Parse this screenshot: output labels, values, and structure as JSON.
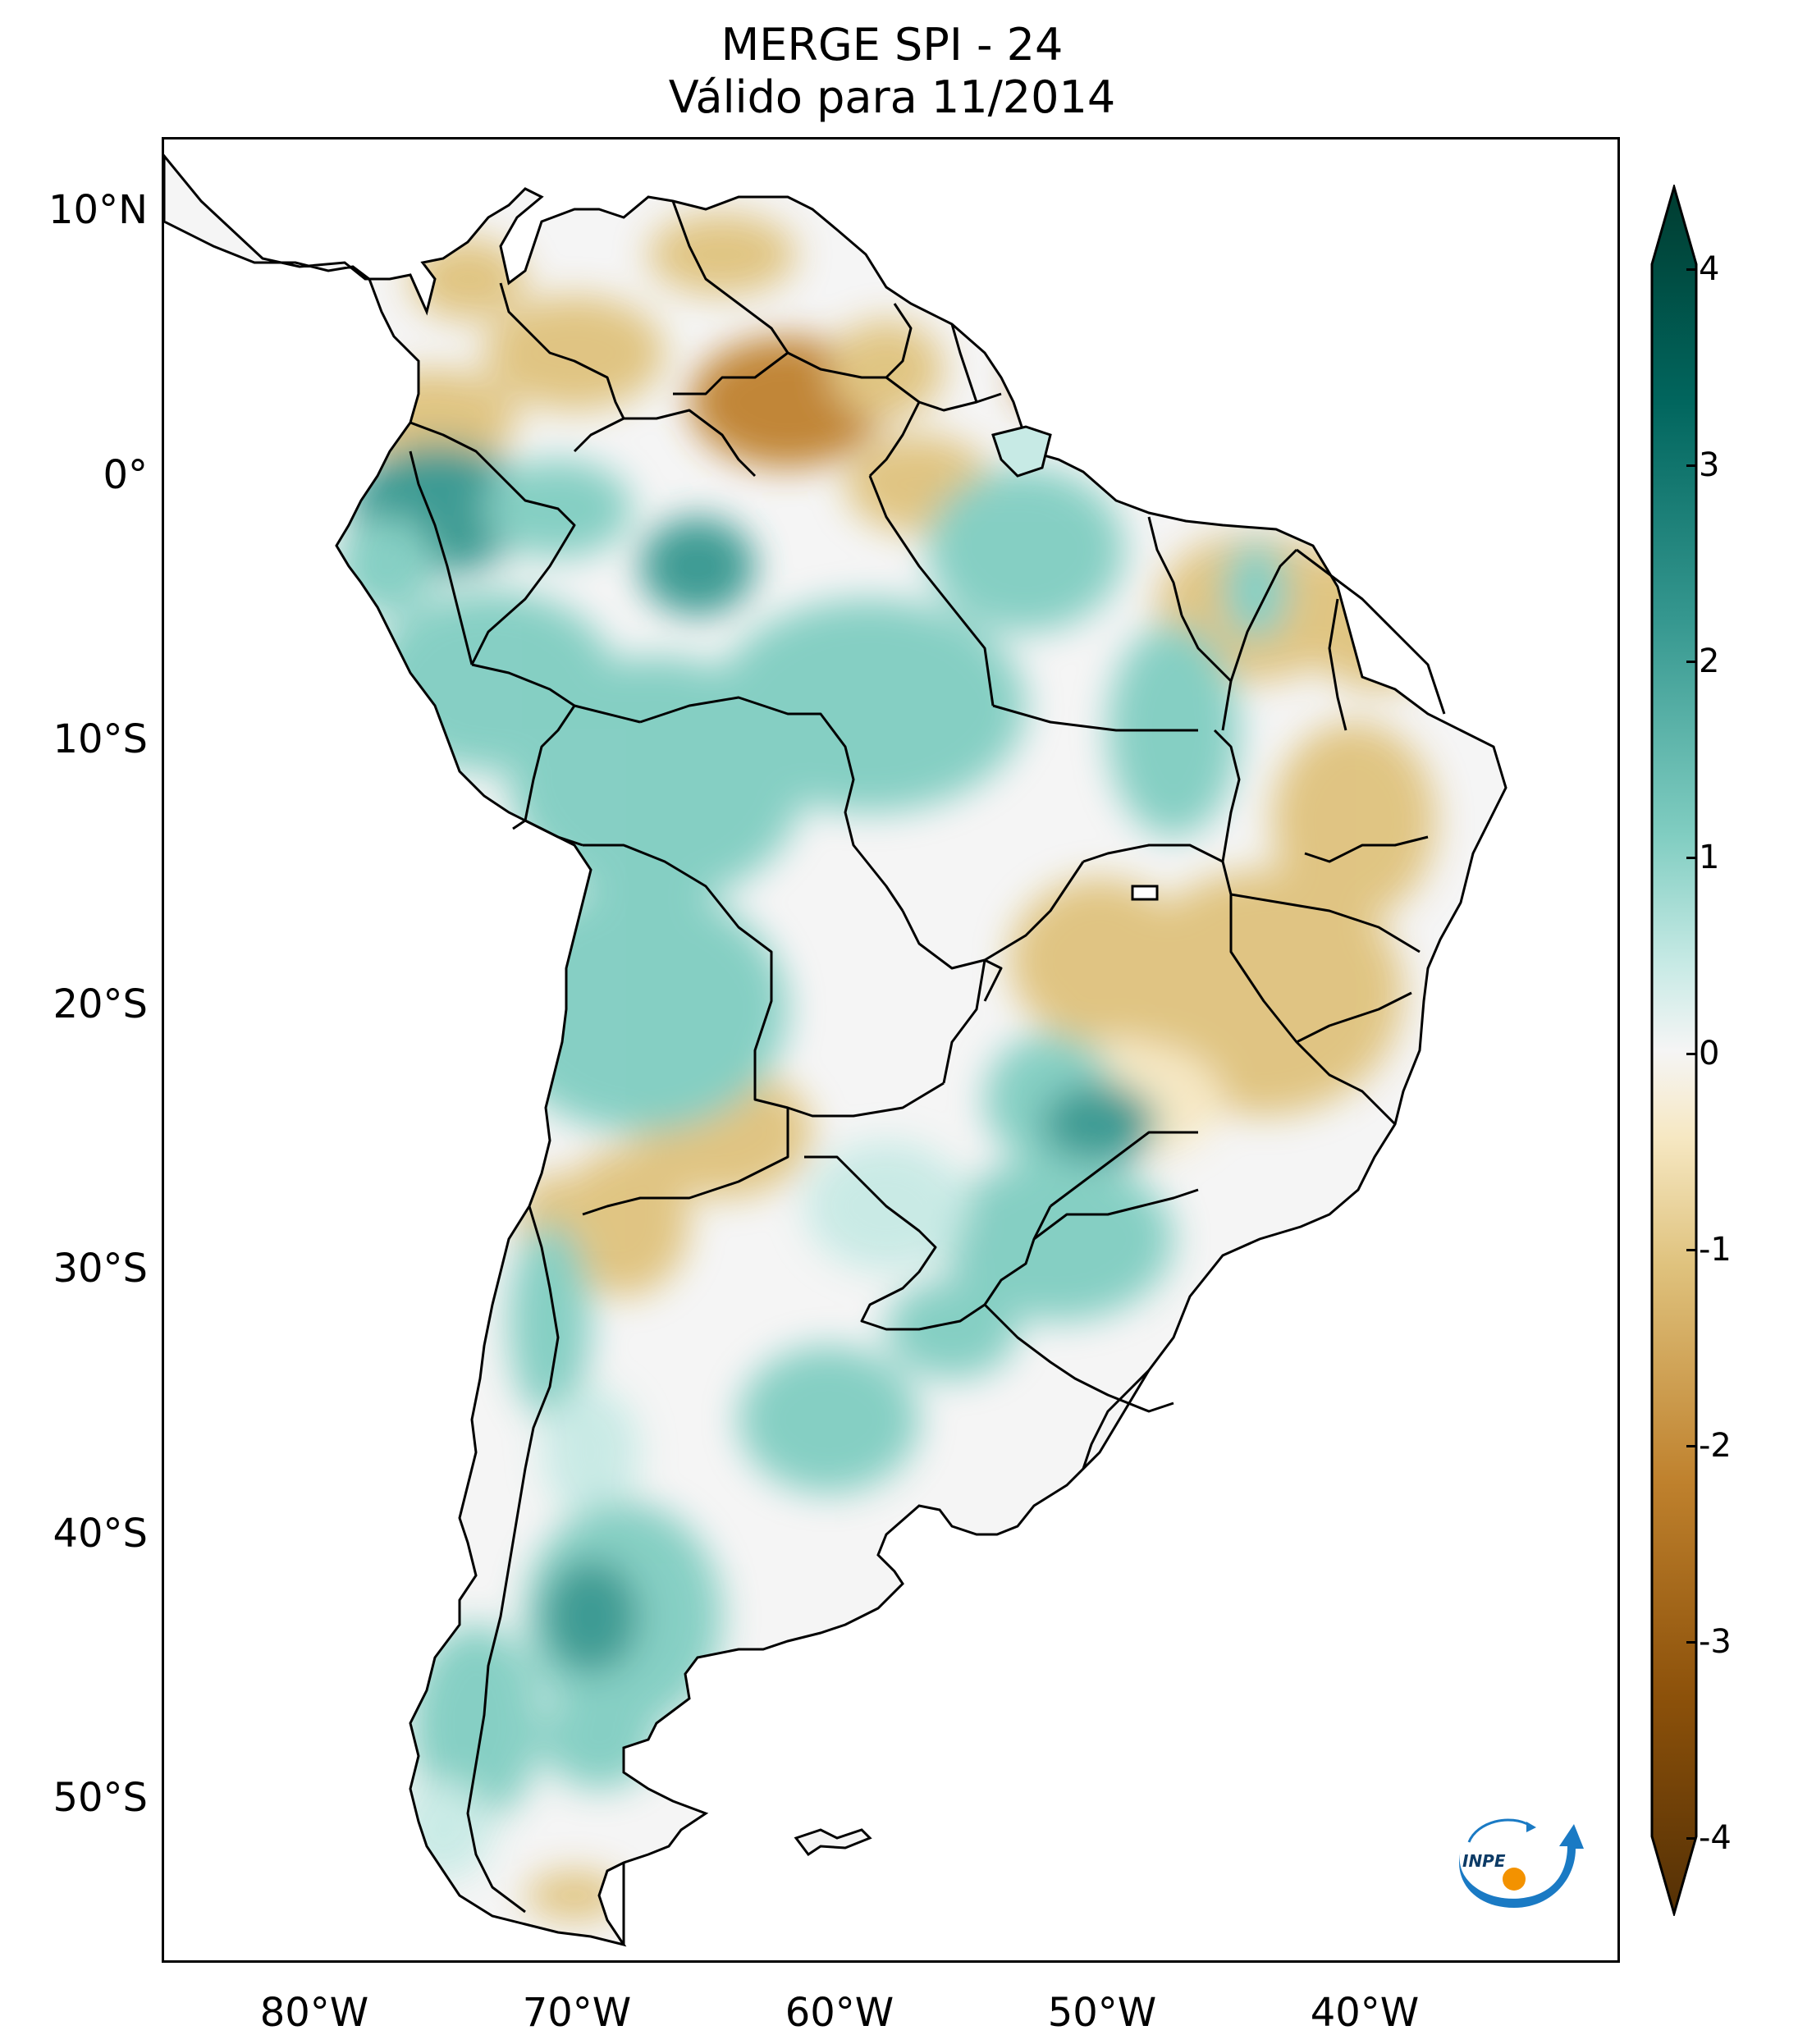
{
  "title": {
    "line1": "MERGE   SPI - 24",
    "line2": "Válido para 11/2014"
  },
  "axes": {
    "lat_labels": [
      "10°N",
      "0°",
      "10°S",
      "20°S",
      "30°S",
      "40°S",
      "50°S"
    ],
    "lon_labels": [
      "80°W",
      "70°W",
      "60°W",
      "50°W",
      "40°W"
    ]
  },
  "colorbar": {
    "ticks": [
      "4",
      "3",
      "2",
      "1",
      "0",
      "-1",
      "-2",
      "-3",
      "-4"
    ],
    "min": -4,
    "max": 4,
    "colors": {
      "dry_extreme": "#543005",
      "dry_strong": "#8c510a",
      "dry_moderate": "#bf812d",
      "dry_mild": "#dfc27d",
      "dry_light": "#f6e8c3",
      "neutral": "#f5f5f5",
      "wet_light": "#c7eae5",
      "wet_mild": "#80cdc1",
      "wet_moderate": "#35978f",
      "wet_strong": "#01665e",
      "wet_extreme": "#003c30"
    }
  },
  "logo": {
    "text": "INPE"
  }
}
